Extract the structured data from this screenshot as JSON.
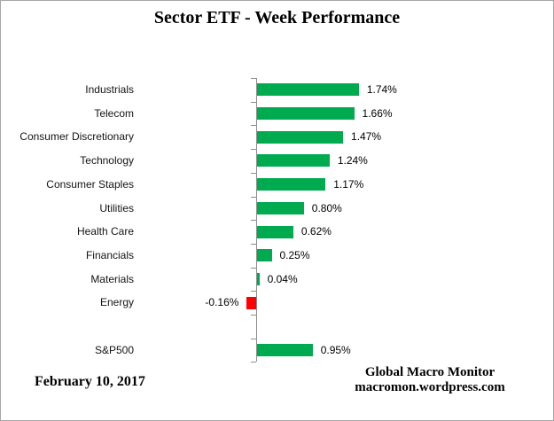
{
  "chart_data": {
    "type": "bar",
    "orientation": "horizontal",
    "title": "Sector ETF - Week Performance",
    "categories": [
      "Industrials",
      "Telecom",
      "Consumer Discretionary",
      "Technology",
      "Consumer Staples",
      "Utilities",
      "Health Care",
      "Financials",
      "Materials",
      "Energy",
      "",
      "S&P500"
    ],
    "values": [
      1.74,
      1.66,
      1.47,
      1.24,
      1.17,
      0.8,
      0.62,
      0.25,
      0.04,
      -0.16,
      null,
      0.95
    ],
    "labels": [
      "1.74%",
      "1.66%",
      "1.47%",
      "1.24%",
      "1.17%",
      "0.80%",
      "0.62%",
      "0.25%",
      "0.04%",
      "-0.16%",
      "",
      "0.95%"
    ],
    "unit": "%",
    "xlim": [
      -2,
      2
    ],
    "grid": false,
    "legend": false,
    "positive_color": "#00ab50",
    "negative_color": "#ff0000",
    "axis_color": "#8c8c8c"
  },
  "footer": {
    "date": "February 10, 2017",
    "credit_line1": "Global Macro Monitor",
    "credit_line2": "macromon.wordpress.com"
  }
}
